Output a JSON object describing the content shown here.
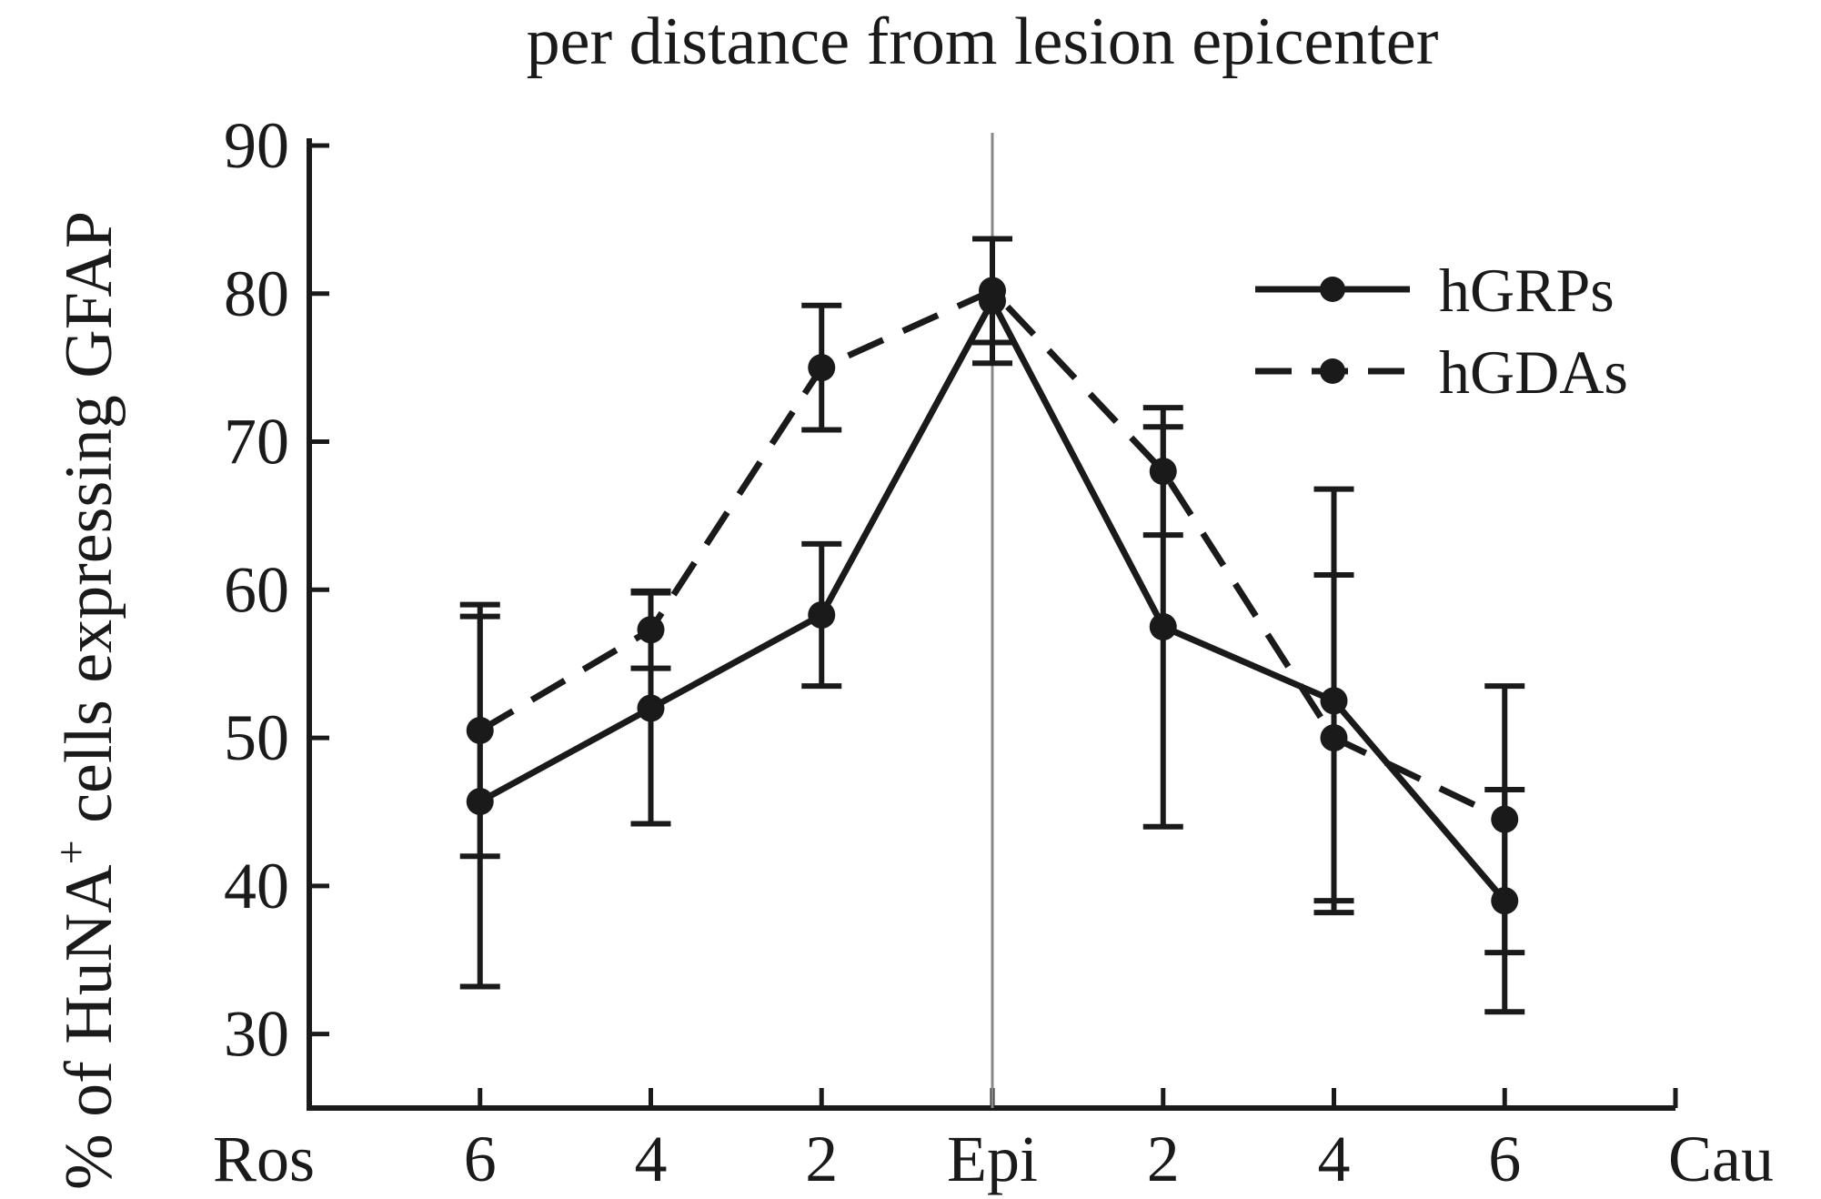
{
  "chart_data": {
    "type": "line",
    "title": "per distance from lesion epicenter",
    "ylabel": "% of HuNA⁺ cells expressing GFAP",
    "ylabel_parts": {
      "pre": "% of HuNA",
      "sup": "+",
      "post": " cells expressing GFAP"
    },
    "xlabel": "",
    "x_end_labels": {
      "left": "Ros",
      "right": "Cau"
    },
    "categories": [
      "6",
      "4",
      "2",
      "Epi",
      "2",
      "4",
      "6"
    ],
    "yticks": [
      30,
      40,
      50,
      60,
      70,
      80,
      90
    ],
    "ylim": [
      25,
      90
    ],
    "grid": false,
    "reference_line_category": "Epi",
    "legend_position": "top-right",
    "series": [
      {
        "name": "hGRPs",
        "style": "solid",
        "color": "#1a1a1a",
        "values": [
          45.7,
          52.0,
          58.3,
          79.5,
          57.5,
          52.5,
          39.0
        ],
        "errors": [
          12.5,
          7.8,
          4.8,
          4.2,
          13.5,
          14.3,
          7.5
        ]
      },
      {
        "name": "hGDAs",
        "style": "dashed",
        "color": "#1a1a1a",
        "values": [
          50.5,
          57.3,
          75.0,
          80.2,
          68.0,
          50.0,
          44.5
        ],
        "errors": [
          8.5,
          2.6,
          4.2,
          3.5,
          4.3,
          11.0,
          9.0
        ]
      }
    ]
  }
}
